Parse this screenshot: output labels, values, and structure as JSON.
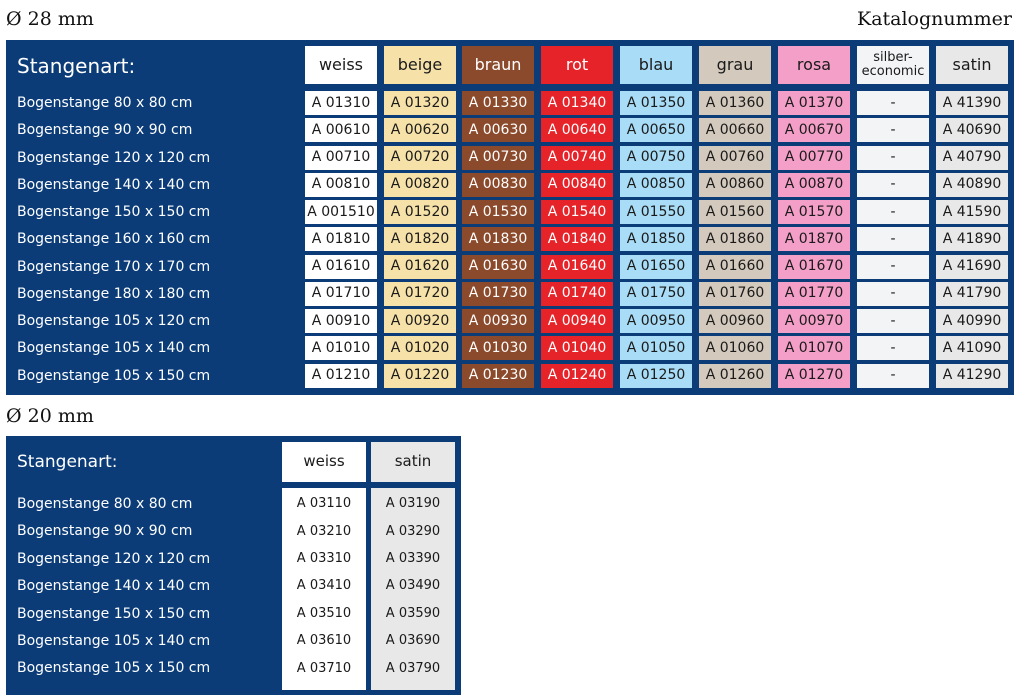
{
  "table1": {
    "diameter": "Ø 28 mm",
    "catalog_label": "Katalognummer",
    "header_label": "Stangenart:",
    "columns": [
      {
        "label": "weiss",
        "bg": "#ffffff",
        "fg": "#1a1a1a"
      },
      {
        "label": "beige",
        "bg": "#f6e1a8",
        "fg": "#1a1a1a"
      },
      {
        "label": "braun",
        "bg": "#8b4a2b",
        "fg": "#ffffff"
      },
      {
        "label": "rot",
        "bg": "#e52329",
        "fg": "#ffffff"
      },
      {
        "label": "blau",
        "bg": "#a9dcf6",
        "fg": "#1a1a1a"
      },
      {
        "label": "grau",
        "bg": "#d3c9bd",
        "fg": "#1a1a1a"
      },
      {
        "label": "rosa",
        "bg": "#f49fc8",
        "fg": "#1a1a1a"
      },
      {
        "label": "silber-\neconomic",
        "bg": "#f3f4f6",
        "fg": "#1a1a1a"
      },
      {
        "label": "satin",
        "bg": "#e8e8e8",
        "fg": "#1a1a1a"
      }
    ],
    "rows": [
      {
        "label": "Bogenstange 80 x 80 cm",
        "values": [
          "A 01310",
          "A 01320",
          "A 01330",
          "A 01340",
          "A 01350",
          "A 01360",
          "A 01370",
          "-",
          "A 41390"
        ]
      },
      {
        "label": "Bogenstange 90 x 90 cm",
        "values": [
          "A 00610",
          "A 00620",
          "A 00630",
          "A 00640",
          "A 00650",
          "A 00660",
          "A 00670",
          "-",
          "A 40690"
        ]
      },
      {
        "label": "Bogenstange 120 x 120 cm",
        "values": [
          "A 00710",
          "A 00720",
          "A 00730",
          "A 00740",
          "A 00750",
          "A 00760",
          "A 00770",
          "-",
          "A 40790"
        ]
      },
      {
        "label": "Bogenstange 140 x 140 cm",
        "values": [
          "A 00810",
          "A 00820",
          "A 00830",
          "A 00840",
          "A 00850",
          "A 00860",
          "A 00870",
          "-",
          "A 40890"
        ]
      },
      {
        "label": "Bogenstange 150 x 150 cm",
        "values": [
          "A 001510",
          "A 01520",
          "A 01530",
          "A 01540",
          "A 01550",
          "A 01560",
          "A 01570",
          "-",
          "A 41590"
        ]
      },
      {
        "label": "Bogenstange 160 x 160 cm",
        "values": [
          "A 01810",
          "A 01820",
          "A 01830",
          "A 01840",
          "A 01850",
          "A 01860",
          "A 01870",
          "-",
          "A 41890"
        ]
      },
      {
        "label": "Bogenstange 170 x 170 cm",
        "values": [
          "A 01610",
          "A 01620",
          "A 01630",
          "A 01640",
          "A 01650",
          "A 01660",
          "A 01670",
          "-",
          "A 41690"
        ]
      },
      {
        "label": "Bogenstange 180 x 180 cm",
        "values": [
          "A 01710",
          "A 01720",
          "A 01730",
          "A 01740",
          "A 01750",
          "A 01760",
          "A 01770",
          "-",
          "A 41790"
        ]
      },
      {
        "label": "Bogenstange 105 x 120 cm",
        "values": [
          "A 00910",
          "A 00920",
          "A 00930",
          "A 00940",
          "A 00950",
          "A 00960",
          "A 00970",
          "-",
          "A 40990"
        ]
      },
      {
        "label": "Bogenstange 105 x 140 cm",
        "values": [
          "A 01010",
          "A 01020",
          "A 01030",
          "A 01040",
          "A 01050",
          "A 01060",
          "A 01070",
          "-",
          "A 41090"
        ]
      },
      {
        "label": "Bogenstange 105 x 150 cm",
        "values": [
          "A 01210",
          "A 01220",
          "A 01230",
          "A 01240",
          "A 01250",
          "A 01260",
          "A 01270",
          "-",
          "A 41290"
        ]
      }
    ]
  },
  "table2": {
    "diameter": "Ø 20 mm",
    "header_label": "Stangenart:",
    "columns": [
      {
        "label": "weiss",
        "bg": "#ffffff",
        "fg": "#1a1a1a"
      },
      {
        "label": "satin",
        "bg": "#e8e8e8",
        "fg": "#1a1a1a"
      }
    ],
    "rows": [
      {
        "label": "Bogenstange 80 x 80 cm",
        "values": [
          "A 03110",
          "A 03190"
        ]
      },
      {
        "label": "Bogenstange 90 x 90 cm",
        "values": [
          "A 03210",
          "A 03290"
        ]
      },
      {
        "label": "Bogenstange 120 x 120 cm",
        "values": [
          "A 03310",
          "A 03390"
        ]
      },
      {
        "label": "Bogenstange 140 x 140 cm",
        "values": [
          "A 03410",
          "A 03490"
        ]
      },
      {
        "label": "Bogenstange 150 x 150 cm",
        "values": [
          "A 03510",
          "A 03590"
        ]
      },
      {
        "label": "Bogenstange 105 x 140 cm",
        "values": [
          "A 03610",
          "A 03690"
        ]
      },
      {
        "label": "Bogenstange 105 x 150 cm",
        "values": [
          "A 03710",
          "A 03790"
        ]
      }
    ]
  },
  "colors": {
    "panel": "#0b3c78"
  }
}
